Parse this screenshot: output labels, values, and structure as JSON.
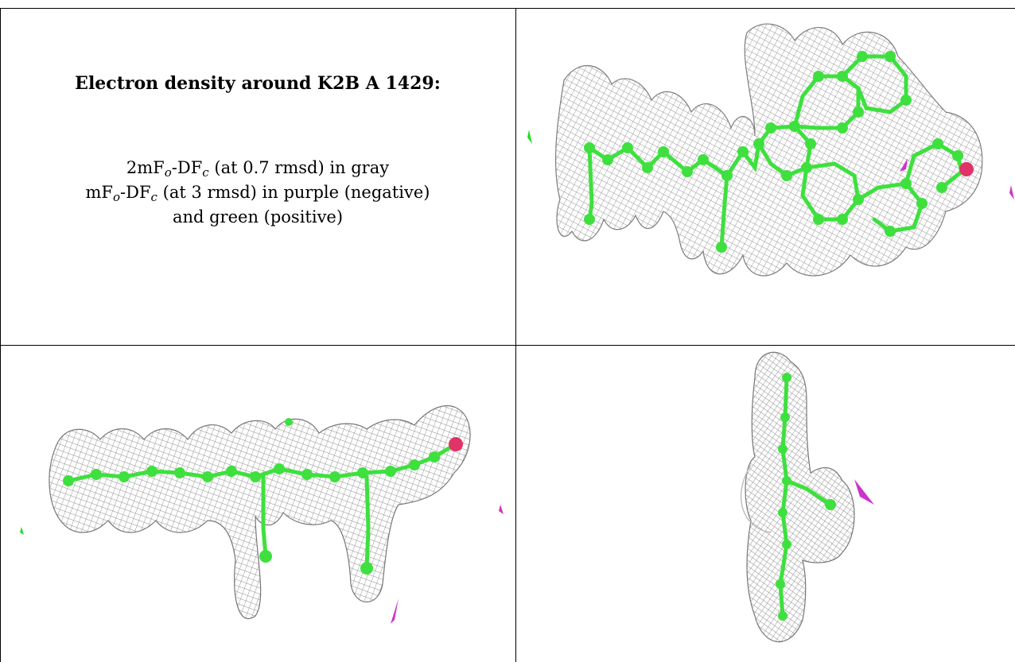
{
  "title": "Electron density around K2B A 1429:",
  "legend": {
    "line1": {
      "text_a": "2mF",
      "sub_a": "o",
      "text_b": "-DF",
      "sub_b": "c",
      "text_c": " (at 0.7 rmsd) in gray"
    },
    "line2": {
      "text_a": "mF",
      "sub_a": "o",
      "text_b": "-DF",
      "sub_b": "c",
      "text_c": " (at 3 rmsd) in purple (negative)"
    },
    "line3": "and green (positive)"
  },
  "colors": {
    "mesh": "#8c8c8c",
    "atom": "#3ee03e",
    "oxygen": "#e0336a",
    "negative": "#cc33cc",
    "positive": "#22dd22"
  },
  "panels": [
    {
      "name": "view-top-right",
      "icon": "electron-density-map"
    },
    {
      "name": "view-bottom-left",
      "icon": "electron-density-map"
    },
    {
      "name": "view-bottom-right",
      "icon": "electron-density-map"
    }
  ]
}
